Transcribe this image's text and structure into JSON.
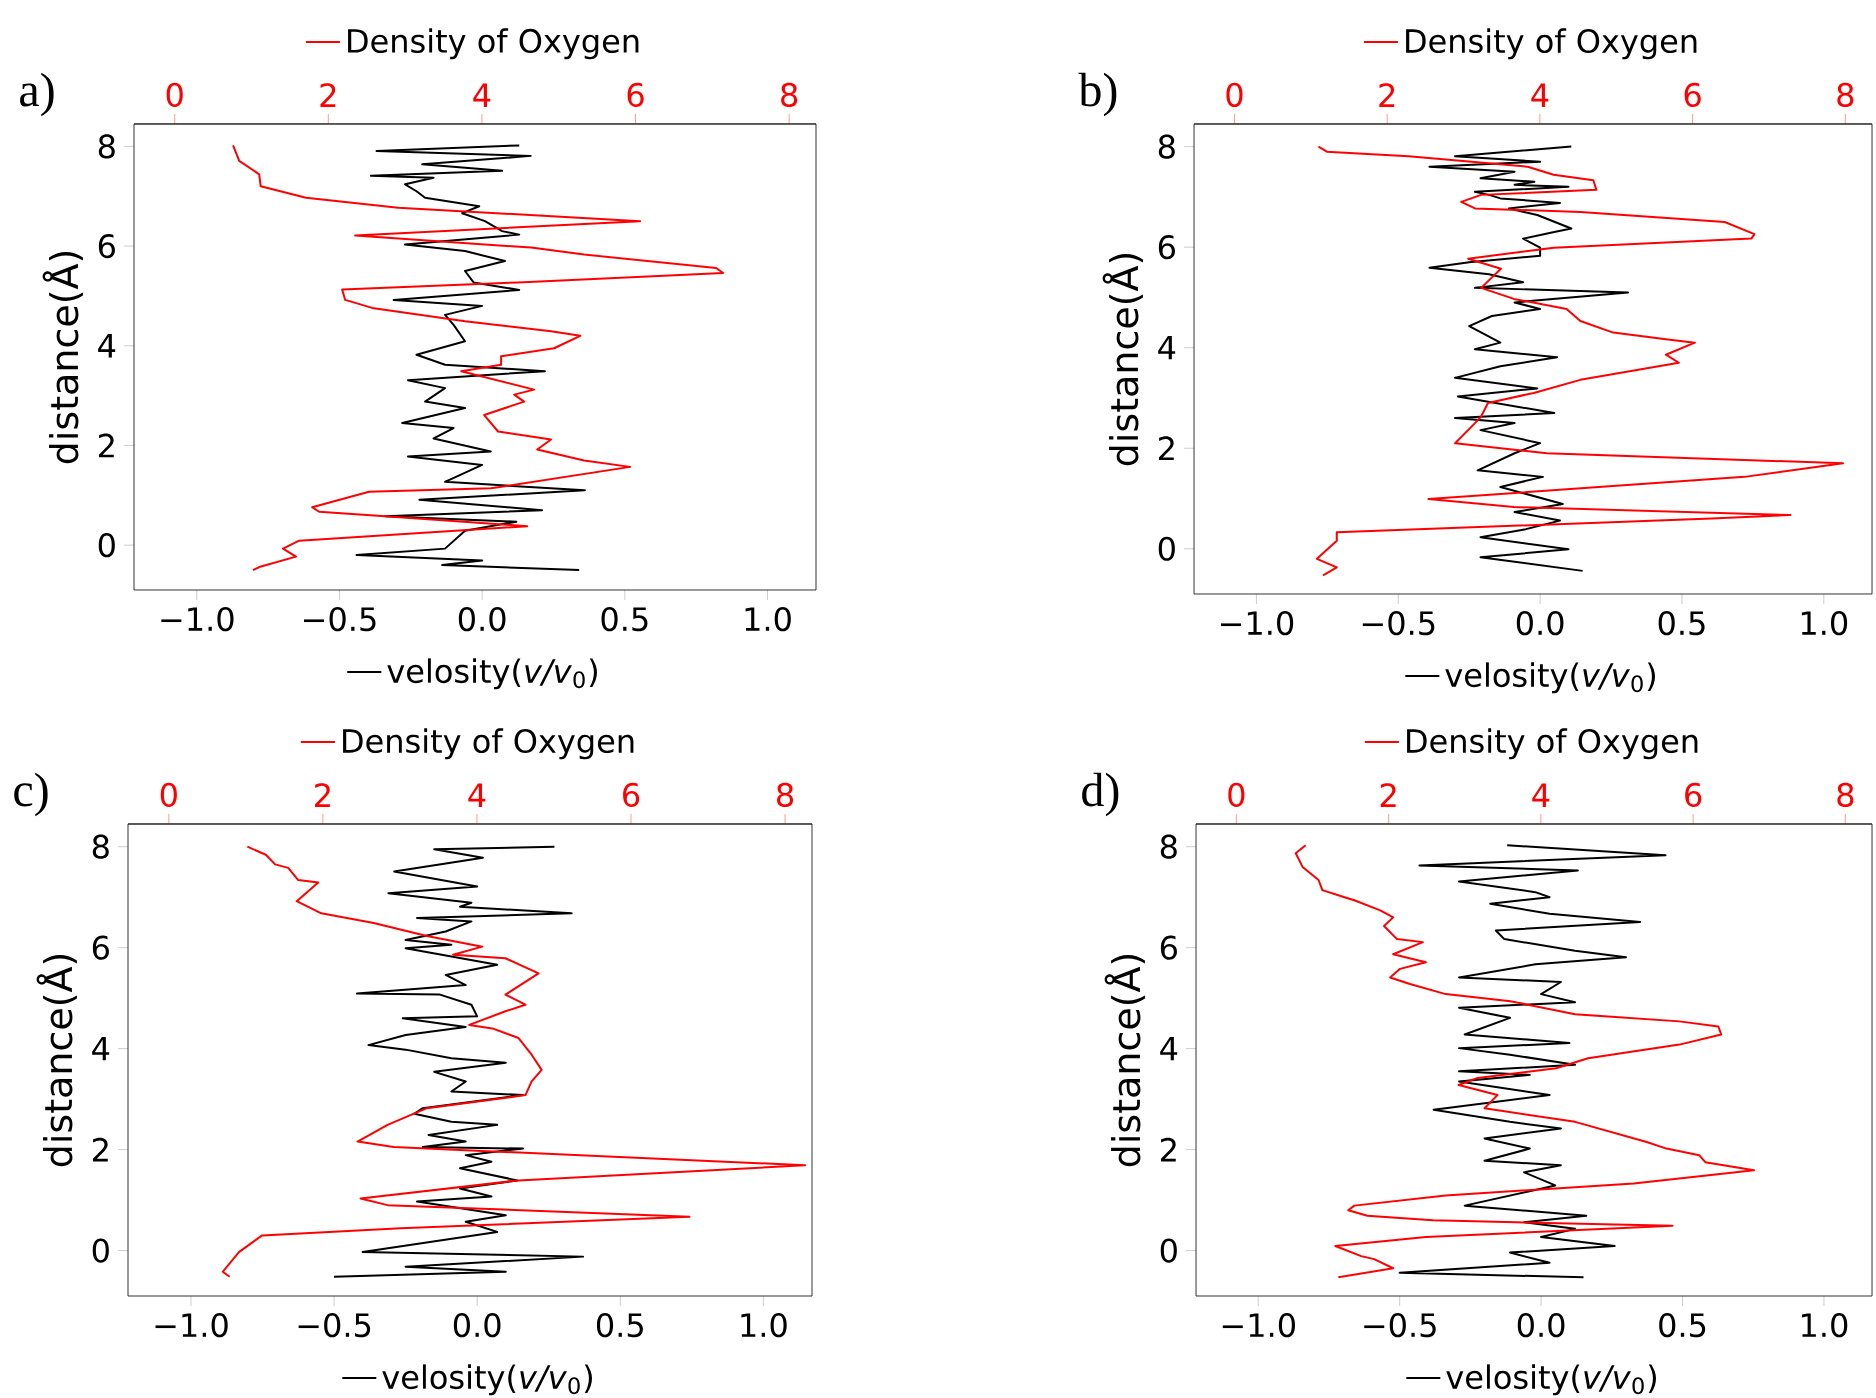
{
  "chart_data": [
    {
      "type": "line",
      "title": "a)",
      "ylabel": "distance(Å)",
      "legend": "center",
      "xlim": [
        -1.22,
        1.17
      ],
      "xticks": [
        {
          "value": -1.0,
          "label": "−1.0"
        },
        {
          "value": -0.5,
          "label": "−0.5"
        },
        {
          "value": 0.0,
          "label": "0.0"
        },
        {
          "value": 0.5,
          "label": "0.5"
        },
        {
          "value": 1.0,
          "label": "1.0"
        }
      ],
      "x2lim": [
        -0.53,
        8.35
      ],
      "x2ticks": [
        0,
        2,
        4,
        6,
        8
      ],
      "ylim": [
        -0.9,
        8.45
      ],
      "yticks": [
        0,
        2,
        4,
        6,
        8
      ],
      "series": [
        {
          "name": "velosity(*v/v*$_{0}$)",
          "color": "#000000",
          "x": [
            0.13,
            -0.37,
            0.17,
            -0.21,
            0.07,
            -0.39,
            -0.17,
            -0.27,
            -0.23,
            -0.2,
            -0.01,
            -0.07,
            0.01,
            0.07,
            0.13,
            -0.27,
            -0.06,
            0.08,
            -0.06,
            -0.03,
            0.13,
            -0.31,
            0,
            -0.13,
            -0.1,
            -0.06,
            -0.23,
            -0.13,
            0.22,
            -0.26,
            -0.13,
            -0.2,
            -0.06,
            -0.28,
            -0.1,
            -0.17,
            0.03,
            -0.26,
            0,
            -0.13,
            0.36,
            -0.22,
            0.21,
            -0.34,
            0.12,
            -0.06,
            -0.13,
            -0.44,
            0,
            -0.14,
            0.34
          ],
          "values": [
            8.02,
            7.91,
            7.81,
            7.64,
            7.51,
            7.41,
            7.37,
            7.24,
            7.1,
            6.97,
            6.8,
            6.66,
            6.5,
            6.3,
            6.23,
            6.03,
            5.9,
            5.7,
            5.5,
            5.27,
            5.12,
            4.92,
            4.8,
            4.62,
            4.42,
            4.09,
            3.82,
            3.62,
            3.49,
            3.31,
            3.15,
            2.88,
            2.75,
            2.45,
            2.35,
            2.14,
            1.88,
            1.78,
            1.61,
            1.27,
            1.1,
            0.91,
            0.7,
            0.58,
            0.47,
            0.29,
            -0.07,
            -0.2,
            -0.31,
            -0.4,
            -0.5
          ]
        },
        {
          "name": "Density of Oxygen",
          "color": "#ff0000",
          "axis": "x2",
          "x": [
            0.76,
            0.84,
            1.1,
            1.12,
            1.71,
            2.91,
            6.06,
            2.35,
            4.64,
            5.33,
            7.05,
            7.14,
            4.47,
            2.18,
            2.22,
            2.57,
            3.78,
            4.9,
            5.28,
            4.94,
            4.25,
            4.25,
            3.73,
            4.68,
            4.42,
            4.55,
            4.03,
            4.21,
            4.9,
            4.72,
            5.33,
            5.93,
            4.12,
            2.53,
            1.79,
            1.88,
            2.74,
            4.59,
            1.62,
            1.41,
            1.58,
            1.1,
            1.02
          ],
          "values": [
            8.02,
            7.71,
            7.44,
            7.2,
            6.97,
            6.77,
            6.5,
            6.21,
            5.97,
            5.83,
            5.56,
            5.46,
            5.27,
            5.13,
            4.92,
            4.76,
            4.49,
            4.29,
            4.2,
            3.95,
            3.79,
            3.62,
            3.49,
            3.12,
            3.02,
            2.88,
            2.61,
            2.28,
            2.12,
            1.92,
            1.7,
            1.57,
            1.14,
            1.07,
            0.76,
            0.67,
            0.58,
            0.38,
            0.09,
            -0.07,
            -0.23,
            -0.44,
            -0.5
          ]
        }
      ]
    },
    {
      "type": "line",
      "title": "b)",
      "ylabel": "distance(Å)",
      "legend": "center",
      "xlim": [
        -1.22,
        1.17
      ],
      "xticks": [
        {
          "value": -1.0,
          "label": "−1.0"
        },
        {
          "value": -0.5,
          "label": "−0.5"
        },
        {
          "value": 0.0,
          "label": "0.0"
        },
        {
          "value": 0.5,
          "label": "0.5"
        },
        {
          "value": 1.0,
          "label": "1.0"
        }
      ],
      "x2lim": [
        -0.53,
        8.35
      ],
      "x2ticks": [
        0,
        2,
        4,
        6,
        8
      ],
      "ylim": [
        -0.9,
        8.45
      ],
      "yticks": [
        0,
        2,
        4,
        6,
        8
      ],
      "series": [
        {
          "name": "velosity(*v/v*$_{0}$)",
          "color": "#000000",
          "x": [
            0.11,
            -0.3,
            0,
            -0.39,
            -0.09,
            -0.21,
            -0.02,
            -0.09,
            0.1,
            -0.23,
            -0.18,
            -0.14,
            0.07,
            -0.11,
            -0.01,
            0.11,
            0.05,
            -0.06,
            0,
            0,
            -0.25,
            -0.39,
            -0.18,
            -0.06,
            -0.23,
            0.31,
            -0.09,
            0,
            -0.17,
            -0.25,
            -0.14,
            -0.23,
            0.06,
            -0.14,
            -0.3,
            -0.01,
            -0.29,
            0.05,
            -0.3,
            -0.09,
            -0.21,
            0,
            -0.09,
            -0.22,
            0.01,
            -0.14,
            0.08,
            -0.09,
            0.07,
            -0.05,
            -0.21,
            0.1,
            -0.21,
            0.15
          ],
          "values": [
            8.0,
            7.81,
            7.7,
            7.6,
            7.5,
            7.37,
            7.3,
            7.24,
            7.2,
            7.1,
            7.04,
            6.97,
            6.88,
            6.77,
            6.64,
            6.37,
            6.3,
            6.17,
            5.99,
            5.83,
            5.7,
            5.59,
            5.46,
            5.3,
            5.19,
            5.1,
            4.9,
            4.77,
            4.63,
            4.43,
            4.1,
            3.97,
            3.81,
            3.63,
            3.4,
            3.19,
            3.03,
            2.7,
            2.6,
            2.5,
            2.36,
            2.1,
            1.9,
            1.56,
            1.43,
            1.23,
            0.89,
            0.73,
            0.56,
            0.39,
            0.23,
            -0.01,
            -0.17,
            -0.44
          ]
        },
        {
          "name": "Density of Oxygen",
          "color": "#ff0000",
          "axis": "x2",
          "x": [
            1.1,
            1.21,
            2.28,
            3.84,
            4.18,
            4.7,
            4.74,
            3.23,
            2.97,
            3.15,
            4.53,
            6.42,
            6.81,
            6.77,
            4.18,
            3.06,
            3.49,
            3.23,
            3.66,
            4.35,
            4.53,
            4.96,
            5.65,
            6.03,
            5.65,
            5.82,
            4.53,
            3.92,
            3.32,
            3.23,
            3.15,
            2.89,
            4.09,
            7.97,
            6.68,
            2.54,
            3.66,
            7.28,
            6.25,
            1.34,
            1.34,
            1.08,
            1.34,
            1.16
          ],
          "values": [
            8.0,
            7.9,
            7.81,
            7.6,
            7.44,
            7.33,
            7.14,
            7.04,
            6.9,
            6.77,
            6.7,
            6.5,
            6.26,
            6.17,
            5.99,
            5.77,
            5.57,
            5.19,
            4.97,
            4.77,
            4.53,
            4.3,
            4.17,
            4.1,
            3.86,
            3.7,
            3.36,
            3.1,
            2.9,
            2.63,
            2.5,
            2.1,
            1.9,
            1.7,
            1.43,
            0.99,
            0.83,
            0.67,
            0.6,
            0.33,
            0.16,
            -0.2,
            -0.37,
            -0.53
          ]
        }
      ]
    },
    {
      "type": "line",
      "title": "c)",
      "ylabel": "distance(Å)",
      "legend": "center",
      "xlim": [
        -1.22,
        1.17
      ],
      "xticks": [
        {
          "value": -1.0,
          "label": "−1.0"
        },
        {
          "value": -0.5,
          "label": "−0.5"
        },
        {
          "value": 0.0,
          "label": "0.0"
        },
        {
          "value": 0.5,
          "label": "0.5"
        },
        {
          "value": 1.0,
          "label": "1.0"
        }
      ],
      "x2lim": [
        -0.53,
        8.35
      ],
      "x2ticks": [
        0,
        2,
        4,
        6,
        8
      ],
      "ylim": [
        -0.9,
        8.45
      ],
      "yticks": [
        0,
        2,
        4,
        6,
        8
      ],
      "series": [
        {
          "name": "velosity(*v/v*$_{0}$)",
          "color": "#000000",
          "x": [
            0.27,
            -0.15,
            0.02,
            -0.29,
            0,
            -0.31,
            -0.02,
            -0.06,
            0.33,
            -0.21,
            -0.02,
            -0.11,
            -0.25,
            -0.09,
            -0.25,
            0.07,
            -0.11,
            -0.04,
            -0.42,
            -0.13,
            -0.02,
            0,
            -0.26,
            -0.04,
            -0.25,
            -0.38,
            -0.25,
            -0.09,
            0.1,
            -0.15,
            -0.04,
            -0.09,
            0.16,
            -0.19,
            -0.22,
            -0.09,
            0.07,
            -0.17,
            -0.04,
            -0.19,
            0.16,
            -0.04,
            0.05,
            -0.06,
            0.14,
            -0.06,
            0.05,
            -0.21,
            0.1,
            -0.04,
            0.07,
            -0.4,
            0.37,
            -0.25,
            0.1,
            -0.5
          ],
          "values": [
            8.0,
            7.95,
            7.78,
            7.51,
            7.21,
            7.08,
            6.89,
            6.81,
            6.68,
            6.59,
            6.52,
            6.32,
            6.15,
            6.06,
            5.99,
            5.66,
            5.46,
            5.26,
            5.09,
            5.07,
            4.87,
            4.64,
            4.6,
            4.43,
            4.27,
            4.07,
            3.98,
            3.81,
            3.72,
            3.54,
            3.35,
            3.15,
            3.08,
            2.82,
            2.71,
            2.55,
            2.49,
            2.29,
            2.16,
            2.05,
            2.02,
            1.89,
            1.76,
            1.63,
            1.39,
            1.23,
            1.07,
            0.97,
            0.7,
            0.57,
            0.37,
            -0.03,
            -0.12,
            -0.32,
            -0.42,
            -0.52
          ]
        },
        {
          "name": "Density of Oxygen",
          "color": "#ff0000",
          "axis": "x2",
          "x": [
            1.02,
            1.26,
            1.38,
            1.55,
            1.68,
            1.94,
            1.66,
            1.98,
            2.66,
            3.35,
            4.07,
            3.69,
            4.37,
            4.8,
            4.37,
            4.63,
            4.37,
            3.9,
            4.2,
            4.54,
            4.71,
            4.84,
            4.71,
            4.63,
            3.35,
            2.84,
            2.45,
            2.92,
            8.26,
            4.54,
            2.49,
            2.84,
            6.76,
            3.01,
            1.21,
            0.91,
            0.7,
            0.79
          ],
          "values": [
            8.0,
            7.84,
            7.65,
            7.58,
            7.34,
            7.29,
            6.92,
            6.68,
            6.49,
            6.23,
            6.02,
            5.86,
            5.79,
            5.49,
            5.07,
            4.87,
            4.74,
            4.47,
            4.4,
            4.21,
            3.88,
            3.58,
            3.35,
            3.08,
            2.82,
            2.49,
            2.16,
            2.05,
            1.69,
            1.39,
            1.03,
            0.9,
            0.67,
            0.44,
            0.3,
            -0.03,
            -0.42,
            -0.52
          ]
        }
      ]
    },
    {
      "type": "line",
      "title": "d)",
      "ylabel": "distance(Å)",
      "legend": "center",
      "xlim": [
        -1.22,
        1.17
      ],
      "xticks": [
        {
          "value": -1.0,
          "label": "−1.0"
        },
        {
          "value": -0.5,
          "label": "−0.5"
        },
        {
          "value": 0.0,
          "label": "0.0"
        },
        {
          "value": 0.5,
          "label": "0.5"
        },
        {
          "value": 1.0,
          "label": "1.0"
        }
      ],
      "x2lim": [
        -0.53,
        8.35
      ],
      "x2ticks": [
        0,
        2,
        4,
        6,
        8
      ],
      "ylim": [
        -0.9,
        8.45
      ],
      "yticks": [
        0,
        2,
        4,
        6,
        8
      ],
      "series": [
        {
          "name": "velosity(*v/v*$_{0}$)",
          "color": "#000000",
          "x": [
            -0.12,
            0.44,
            -0.43,
            0.13,
            -0.29,
            -0.02,
            0.03,
            -0.18,
            0.03,
            0.35,
            -0.16,
            -0.13,
            0.12,
            0.3,
            -0.02,
            -0.29,
            0.07,
            0,
            0.12,
            -0.29,
            -0.11,
            -0.27,
            0.1,
            -0.29,
            -0.11,
            0.12,
            -0.29,
            -0.04,
            -0.29,
            0.03,
            -0.38,
            -0.11,
            0.07,
            -0.2,
            -0.04,
            -0.2,
            0.07,
            -0.06,
            0.05,
            -0.27,
            0.16,
            -0.06,
            0.12,
            0,
            0.26,
            -0.11,
            0.03,
            -0.5,
            0.15
          ],
          "values": [
            8.03,
            7.83,
            7.63,
            7.53,
            7.31,
            7.1,
            7.0,
            6.87,
            6.67,
            6.51,
            6.34,
            6.17,
            5.94,
            5.81,
            5.67,
            5.41,
            5.32,
            5.08,
            4.92,
            4.81,
            4.61,
            4.28,
            4.11,
            4.01,
            3.88,
            3.68,
            3.55,
            3.48,
            3.35,
            3.08,
            2.79,
            2.55,
            2.42,
            2.22,
            2.02,
            1.78,
            1.69,
            1.55,
            1.29,
            0.89,
            0.69,
            0.56,
            0.43,
            0.27,
            0.09,
            -0.04,
            -0.24,
            -0.44,
            -0.53
          ]
        },
        {
          "name": "Density of Oxygen",
          "color": "#ff0000",
          "axis": "x2",
          "x": [
            0.91,
            0.78,
            0.87,
            1.08,
            1.13,
            1.42,
            1.55,
            1.89,
            2.06,
            1.94,
            2.11,
            2.45,
            2.06,
            2.49,
            2.15,
            2.02,
            2.28,
            2.75,
            3.6,
            4.45,
            5.82,
            6.33,
            6.37,
            5.82,
            4.62,
            4.2,
            3.17,
            2.92,
            3.43,
            3.26,
            4.45,
            5.39,
            5.65,
            6.08,
            6.16,
            6.8,
            5.22,
            2.75,
            1.55,
            1.47,
            1.72,
            2.58,
            5.73,
            2.49,
            1.3,
            1.64,
            1.81,
            2.06,
            1.34
          ],
          "values": [
            8.03,
            7.87,
            7.6,
            7.34,
            7.14,
            7.0,
            6.94,
            6.74,
            6.6,
            6.43,
            6.17,
            6.11,
            5.87,
            5.71,
            5.58,
            5.41,
            5.28,
            5.08,
            4.94,
            4.68,
            4.54,
            4.44,
            4.28,
            4.08,
            3.81,
            3.61,
            3.42,
            3.28,
            3.08,
            2.82,
            2.55,
            2.15,
            2.02,
            1.89,
            1.75,
            1.59,
            1.33,
            1.09,
            0.89,
            0.8,
            0.69,
            0.6,
            0.49,
            0.27,
            0.09,
            -0.11,
            -0.17,
            -0.35,
            -0.53
          ]
        }
      ]
    }
  ]
}
